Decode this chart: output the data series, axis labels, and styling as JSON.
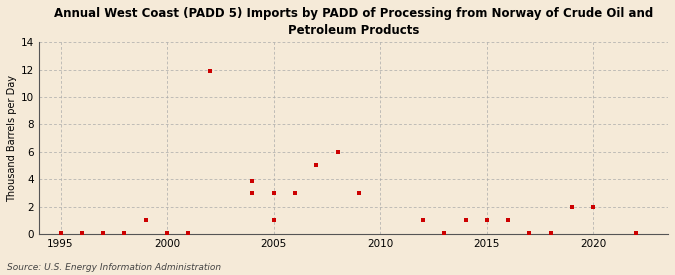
{
  "title": "Annual West Coast (PADD 5) Imports by PADD of Processing from Norway of Crude Oil and\nPetroleum Products",
  "ylabel": "Thousand Barrels per Day",
  "source": "Source: U.S. Energy Information Administration",
  "background_color": "#f5ead8",
  "marker_color": "#cc0000",
  "grid_color": "#aaaaaa",
  "xlim": [
    1994.0,
    2023.5
  ],
  "ylim": [
    0,
    14
  ],
  "yticks": [
    0,
    2,
    4,
    6,
    8,
    10,
    12,
    14
  ],
  "xticks": [
    1995,
    2000,
    2005,
    2010,
    2015,
    2020
  ],
  "data": [
    [
      1995,
      0.05
    ],
    [
      1996,
      0.05
    ],
    [
      1997,
      0.05
    ],
    [
      1998,
      0.05
    ],
    [
      1999,
      1.0
    ],
    [
      2000,
      0.05
    ],
    [
      2001,
      0.05
    ],
    [
      2002,
      11.9
    ],
    [
      2004,
      3.9
    ],
    [
      2004,
      3.0
    ],
    [
      2005,
      3.0
    ],
    [
      2005,
      1.0
    ],
    [
      2006,
      3.0
    ],
    [
      2007,
      5.0
    ],
    [
      2008,
      6.0
    ],
    [
      2009,
      3.0
    ],
    [
      2012,
      1.0
    ],
    [
      2013,
      0.05
    ],
    [
      2014,
      1.0
    ],
    [
      2015,
      1.0
    ],
    [
      2016,
      1.0
    ],
    [
      2017,
      0.05
    ],
    [
      2018,
      0.05
    ],
    [
      2019,
      2.0
    ],
    [
      2020,
      2.0
    ],
    [
      2022,
      0.05
    ]
  ]
}
